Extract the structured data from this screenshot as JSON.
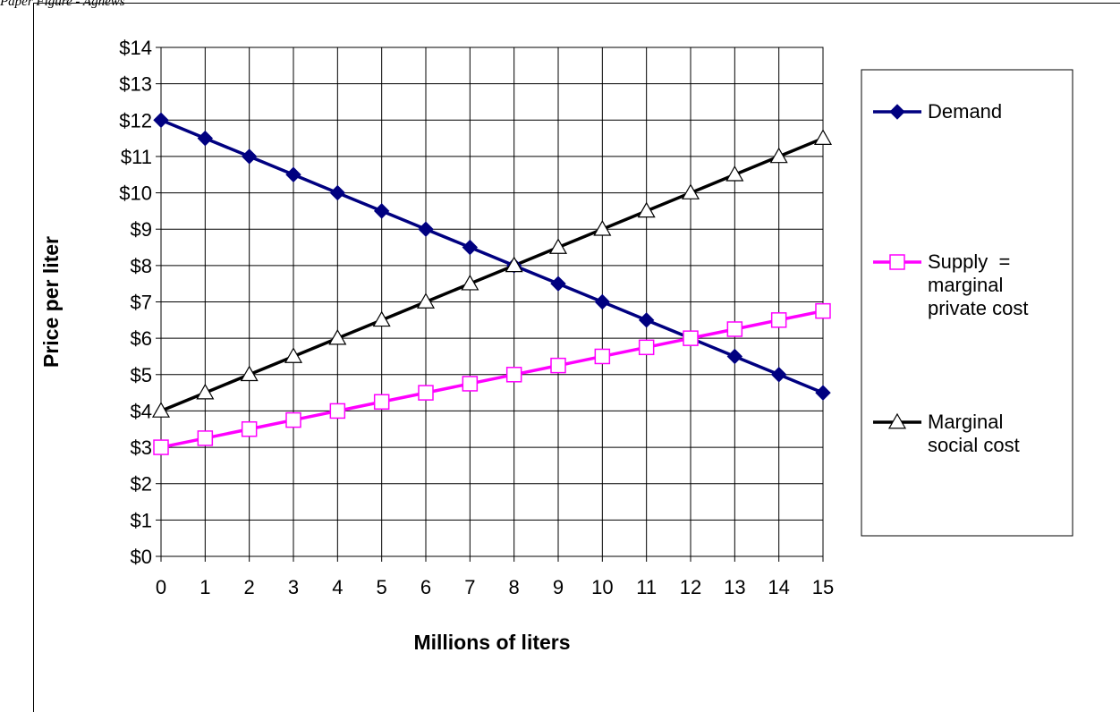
{
  "page": {
    "header_text": "Paper Figure - Agnews"
  },
  "chart_data": {
    "type": "line",
    "title": "",
    "xlabel": "Millions of liters",
    "ylabel": "Price per liter",
    "x": [
      0,
      1,
      2,
      3,
      4,
      5,
      6,
      7,
      8,
      9,
      10,
      11,
      12,
      13,
      14,
      15
    ],
    "x_tick_labels": [
      "0",
      "1",
      "2",
      "3",
      "4",
      "5",
      "6",
      "7",
      "8",
      "9",
      "10",
      "11",
      "12",
      "13",
      "14",
      "15"
    ],
    "y_tick_labels": [
      "$0",
      "$1",
      "$2",
      "$3",
      "$4",
      "$5",
      "$6",
      "$7",
      "$8",
      "$9",
      "$10",
      "$11",
      "$12",
      "$13",
      "$14"
    ],
    "ylim": [
      0,
      14
    ],
    "grid": true,
    "legend_position": "right",
    "series": [
      {
        "name": "Demand",
        "legend_lines": [
          "Demand"
        ],
        "color": "#000080",
        "marker": "diamond",
        "values": [
          12,
          11.5,
          11,
          10.5,
          10,
          9.5,
          9,
          8.5,
          8,
          7.5,
          7,
          6.5,
          6,
          5.5,
          5,
          4.5
        ]
      },
      {
        "name": "Supply = marginal private cost",
        "legend_lines": [
          "Supply  =",
          "marginal",
          "private cost"
        ],
        "color": "#ff00ff",
        "marker": "square-open",
        "values": [
          3,
          3.25,
          3.5,
          3.75,
          4,
          4.25,
          4.5,
          4.75,
          5,
          5.25,
          5.5,
          5.75,
          6,
          6.25,
          6.5,
          6.75
        ]
      },
      {
        "name": "Marginal social cost",
        "legend_lines": [
          "Marginal",
          "social cost"
        ],
        "color": "#000000",
        "marker": "triangle-open",
        "values": [
          4,
          4.5,
          5,
          5.5,
          6,
          6.5,
          7,
          7.5,
          8,
          8.5,
          9,
          9.5,
          10,
          10.5,
          11,
          11.5
        ]
      }
    ]
  }
}
